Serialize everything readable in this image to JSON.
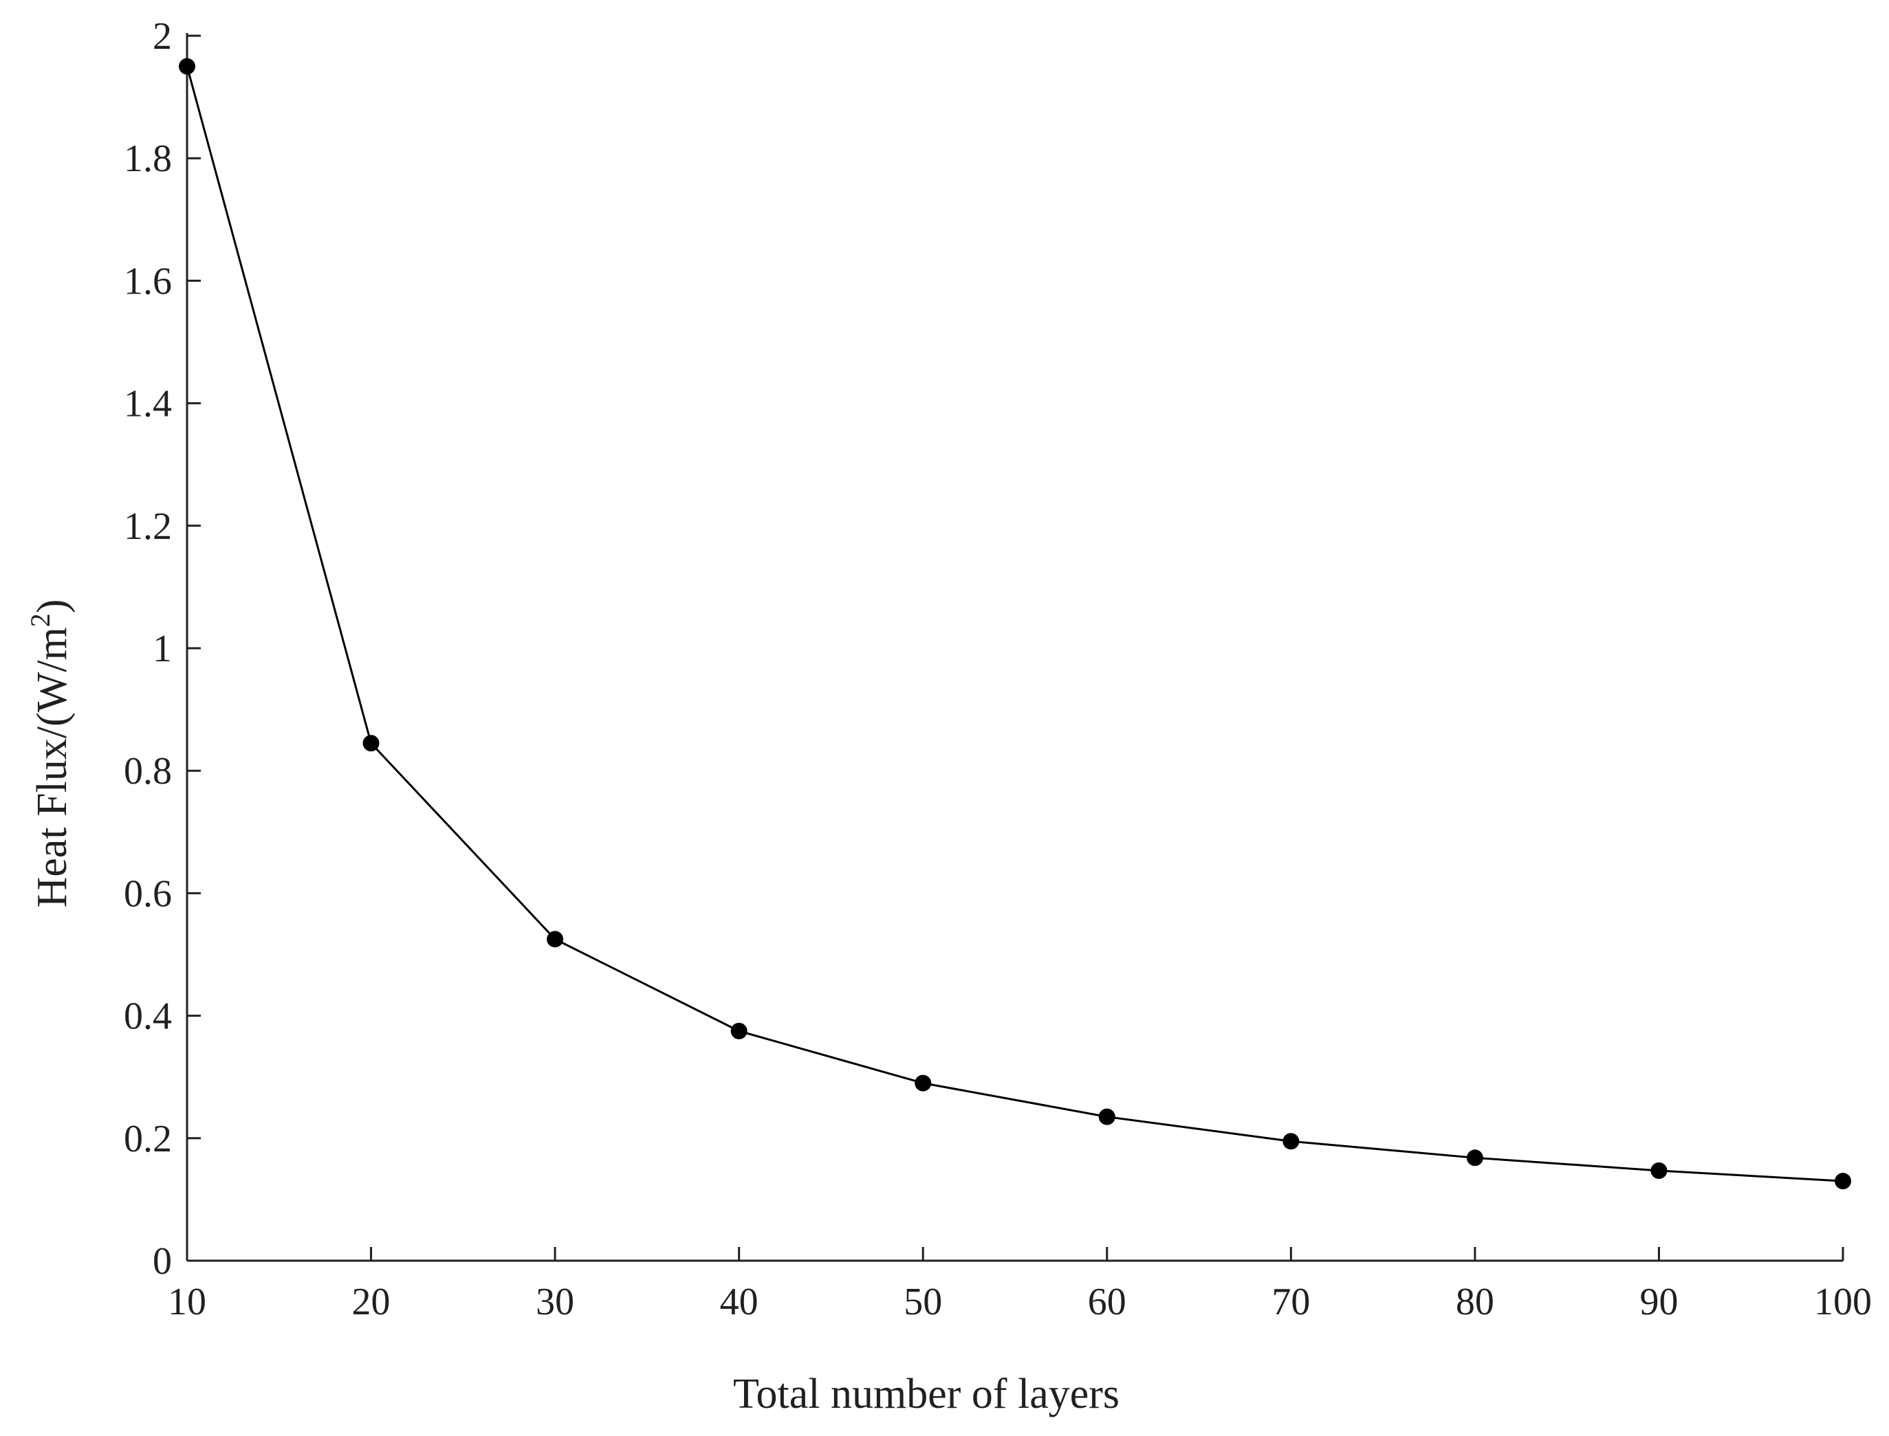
{
  "chart_data": {
    "type": "line",
    "title": "",
    "xlabel": "Total number of layers",
    "ylabel_main": "Heat Flux/(W/m",
    "ylabel_sup": "2",
    "ylabel_close": ")",
    "x": [
      10,
      20,
      30,
      40,
      50,
      60,
      70,
      80,
      90,
      100
    ],
    "series": [
      {
        "values": [
          1.95,
          0.845,
          0.525,
          0.375,
          0.29,
          0.235,
          0.195,
          0.168,
          0.147,
          0.13
        ]
      }
    ],
    "xlim": [
      10,
      100
    ],
    "ylim": [
      0,
      2
    ],
    "xticks": [
      10,
      20,
      30,
      40,
      50,
      60,
      70,
      80,
      90,
      100
    ],
    "yticks": [
      0,
      0.2,
      0.4,
      0.6,
      0.8,
      1,
      1.2,
      1.4,
      1.6,
      1.8,
      2
    ],
    "xtick_labels": [
      "10",
      "20",
      "30",
      "40",
      "50",
      "60",
      "70",
      "80",
      "90",
      "100"
    ],
    "ytick_labels": [
      "0",
      "0.2",
      "0.4",
      "0.6",
      "0.8",
      "1",
      "1.2",
      "1.4",
      "1.6",
      "1.8",
      "2"
    ],
    "grid": false,
    "legend": "none",
    "line_color": "#000000",
    "marker_color": "#000000",
    "axis_color": "#231f20"
  }
}
